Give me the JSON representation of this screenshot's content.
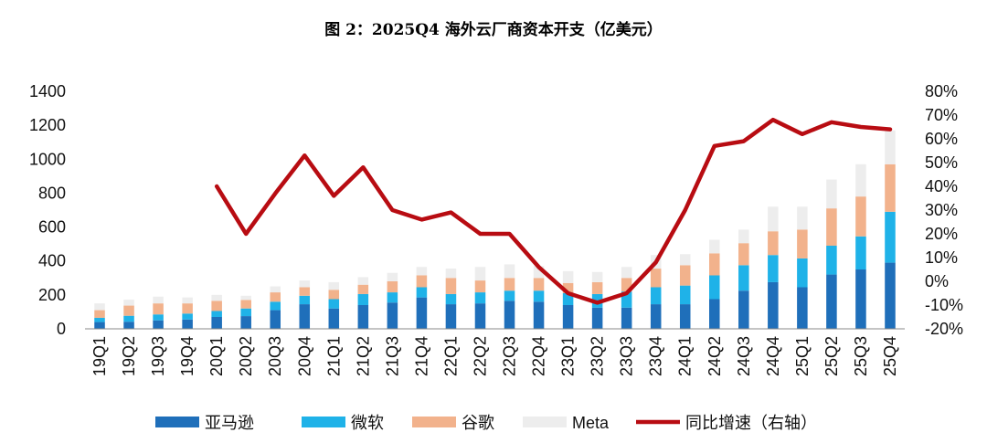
{
  "chart_data": {
    "type": "bar",
    "stacked": true,
    "title": "图 2：2025Q4 海外云厂商资本开支（亿美元）",
    "categories": [
      "19Q1",
      "19Q2",
      "19Q3",
      "19Q4",
      "20Q1",
      "20Q2",
      "20Q3",
      "20Q4",
      "21Q1",
      "21Q2",
      "21Q3",
      "21Q4",
      "22Q1",
      "22Q2",
      "22Q3",
      "22Q4",
      "23Q1",
      "23Q2",
      "23Q3",
      "23Q4",
      "24Q1",
      "24Q2",
      "24Q3",
      "24Q4",
      "25Q1",
      "25Q2",
      "25Q3",
      "25Q4"
    ],
    "series": [
      {
        "name": "亚马逊",
        "axis": "left",
        "color": "#1f6fba",
        "values": [
          40,
          42,
          50,
          55,
          70,
          75,
          110,
          145,
          120,
          140,
          155,
          185,
          145,
          150,
          165,
          160,
          140,
          125,
          125,
          145,
          145,
          175,
          225,
          275,
          245,
          320,
          350,
          390
        ]
      },
      {
        "name": "微软",
        "axis": "left",
        "color": "#1fb2e8",
        "values": [
          25,
          35,
          35,
          35,
          35,
          45,
          50,
          50,
          55,
          65,
          60,
          60,
          60,
          65,
          60,
          65,
          70,
          80,
          95,
          100,
          110,
          140,
          150,
          160,
          170,
          170,
          195,
          300
        ]
      },
      {
        "name": "谷歌",
        "axis": "left",
        "color": "#f2b28c",
        "values": [
          45,
          60,
          65,
          60,
          60,
          50,
          55,
          50,
          55,
          55,
          65,
          70,
          95,
          70,
          75,
          75,
          60,
          70,
          80,
          110,
          120,
          130,
          130,
          140,
          170,
          220,
          235,
          280
        ]
      },
      {
        "name": "Meta",
        "axis": "left",
        "color": "#ededed",
        "values": [
          40,
          35,
          40,
          35,
          35,
          25,
          35,
          40,
          45,
          45,
          50,
          50,
          55,
          80,
          80,
          70,
          70,
          60,
          65,
          80,
          65,
          80,
          80,
          145,
          135,
          170,
          190,
          200
        ]
      },
      {
        "name": "同比增速（右轴）",
        "axis": "right",
        "type": "line",
        "color": "#b80c12",
        "values": [
          null,
          null,
          null,
          null,
          40,
          20,
          37,
          53,
          36,
          48,
          30,
          26,
          29,
          20,
          20,
          6,
          -5,
          -9,
          -5,
          8,
          30,
          57,
          59,
          68,
          62,
          67,
          65,
          64
        ]
      }
    ],
    "y_left": {
      "ticks": [
        "0",
        "200",
        "400",
        "600",
        "800",
        "1000",
        "1200",
        "1400"
      ],
      "ylim": [
        0,
        1400
      ]
    },
    "y_right": {
      "ticks": [
        "-20%",
        "-10%",
        "0%",
        "10%",
        "20%",
        "30%",
        "40%",
        "50%",
        "60%",
        "70%",
        "80%"
      ],
      "ylim": [
        -20,
        80
      ]
    },
    "grid": false,
    "legend_position": "bottom"
  }
}
